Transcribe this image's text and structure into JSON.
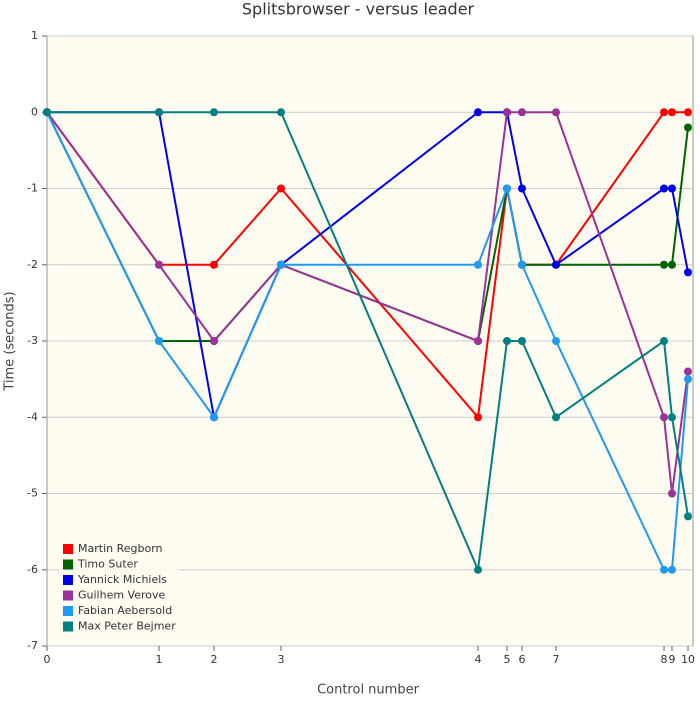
{
  "chart_data": {
    "type": "line",
    "title": "Splitsbrowser - versus leader",
    "x_label": "Control number",
    "y_label": "Time (seconds)",
    "x": [
      0,
      112,
      167,
      234,
      431,
      460,
      475,
      509,
      617,
      625,
      641
    ],
    "xlim": [
      0,
      641
    ],
    "xticks": [
      {
        "value": 0,
        "label": "0"
      },
      {
        "value": 112,
        "label": "1"
      },
      {
        "value": 167,
        "label": "2"
      },
      {
        "value": 234,
        "label": "3"
      },
      {
        "value": 431,
        "label": "4"
      },
      {
        "value": 460,
        "label": "5"
      },
      {
        "value": 475,
        "label": "6"
      },
      {
        "value": 509,
        "label": "7"
      },
      {
        "value": 617,
        "label": "8"
      },
      {
        "value": 625,
        "label": "9"
      },
      {
        "value": 641,
        "label": "10"
      }
    ],
    "ylim": [
      -7,
      1
    ],
    "yticks": [
      1,
      0,
      -1,
      -2,
      -3,
      -4,
      -5,
      -6,
      -7
    ],
    "grid": true,
    "legend": "lower left",
    "series": [
      {
        "name": "Martin Regborn",
        "color": "#ff0000",
        "values": [
          0,
          -2,
          -2,
          -1,
          -4,
          -1,
          -2,
          -2,
          0,
          0,
          0
        ]
      },
      {
        "name": "Timo Suter",
        "color": "#006400",
        "values": [
          0,
          -3,
          -3,
          -2,
          -3,
          -1,
          -2,
          -2,
          -2,
          -2,
          -0.2
        ]
      },
      {
        "name": "Yannick Michiels",
        "color": "#0000ee",
        "values": [
          0,
          0,
          -4,
          -2,
          0,
          0,
          -1,
          -2,
          -1,
          -1,
          -2.1
        ]
      },
      {
        "name": "Guilhem Verove",
        "color": "#993399",
        "values": [
          0,
          -2,
          -3,
          -2,
          -3,
          0,
          0,
          0,
          -4,
          -5,
          -3.4
        ]
      },
      {
        "name": "Fabian Aebersold",
        "color": "#1e9bf0",
        "values": [
          0,
          -3,
          -4,
          -2,
          -2,
          -1,
          -2,
          -3,
          -6,
          -6,
          -3.5
        ]
      },
      {
        "name": "Max Peter Bejmer",
        "color": "#008080",
        "values": [
          0,
          0,
          0,
          0,
          -6,
          -3,
          -3,
          -4,
          -3,
          -4,
          -5.3
        ]
      }
    ]
  }
}
